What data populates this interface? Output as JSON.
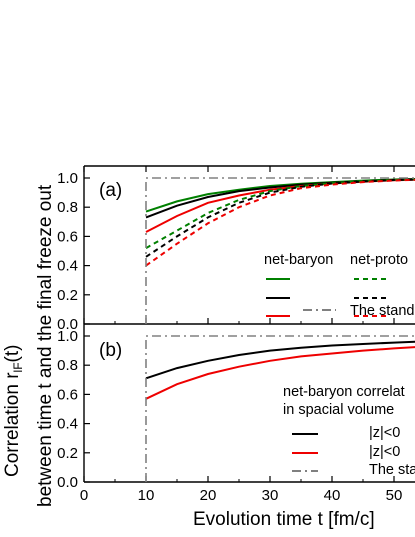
{
  "chart_data": {
    "type": "line",
    "xlabel": "Evolution time t  [fm/c]",
    "ylabel_line1": "Correlation r",
    "ylabel_sub": "lF",
    "ylabel_suffix": "(t)",
    "ylabel_line2": "between time t and the final freeze out",
    "xlim": [
      0,
      55
    ],
    "x_ticks": [
      "0",
      "10",
      "20",
      "30",
      "40",
      "50"
    ],
    "colors": {
      "black": "#000000",
      "green": "#008000",
      "red": "#ee0000",
      "gray": "#808080"
    },
    "panels": [
      {
        "label": "(a)",
        "ylim": [
          0,
          1.05
        ],
        "y_ticks": [
          "0.0",
          "0.2",
          "0.4",
          "0.6",
          "0.8",
          "1.0"
        ],
        "legend": {
          "col1_header": "net-baryon",
          "col2_header": "net-proto",
          "standard_label": "The stand"
        },
        "series": [
          {
            "color": "green",
            "dash": "solid",
            "x": [
              10,
              15,
              20,
              25,
              30,
              35,
              40,
              45,
              50,
              55
            ],
            "y": [
              0.77,
              0.84,
              0.89,
              0.92,
              0.945,
              0.96,
              0.972,
              0.982,
              0.99,
              0.995
            ]
          },
          {
            "color": "black",
            "dash": "solid",
            "x": [
              10,
              15,
              20,
              25,
              30,
              35,
              40,
              45,
              50,
              55
            ],
            "y": [
              0.73,
              0.81,
              0.87,
              0.91,
              0.935,
              0.955,
              0.968,
              0.978,
              0.987,
              0.993
            ]
          },
          {
            "color": "red",
            "dash": "solid",
            "x": [
              10,
              15,
              20,
              25,
              30,
              35,
              40,
              45,
              50,
              55
            ],
            "y": [
              0.63,
              0.74,
              0.83,
              0.88,
              0.92,
              0.945,
              0.962,
              0.975,
              0.985,
              0.99
            ]
          },
          {
            "color": "green",
            "dash": "dashed",
            "x": [
              10,
              15,
              20,
              25,
              30,
              35,
              40,
              45,
              50,
              55
            ],
            "y": [
              0.52,
              0.64,
              0.76,
              0.85,
              0.91,
              0.945,
              0.965,
              0.978,
              0.987,
              0.992
            ]
          },
          {
            "color": "black",
            "dash": "dashed",
            "x": [
              10,
              15,
              20,
              25,
              30,
              35,
              40,
              45,
              50,
              55
            ],
            "y": [
              0.46,
              0.6,
              0.73,
              0.83,
              0.9,
              0.94,
              0.962,
              0.976,
              0.986,
              0.991
            ]
          },
          {
            "color": "red",
            "dash": "dashed",
            "x": [
              10,
              15,
              20,
              25,
              30,
              35,
              40,
              45,
              50,
              55
            ],
            "y": [
              0.4,
              0.55,
              0.69,
              0.8,
              0.88,
              0.93,
              0.955,
              0.972,
              0.983,
              0.99
            ]
          },
          {
            "color": "gray",
            "dash": "dashdot",
            "x": [
              10,
              10,
              55
            ],
            "y": [
              0,
              1.0,
              1.0
            ]
          }
        ]
      },
      {
        "label": "(b)",
        "ylim": [
          0,
          1.05
        ],
        "y_ticks": [
          "0.0",
          "0.2",
          "0.4",
          "0.6",
          "0.8",
          "1.0"
        ],
        "legend": {
          "title_line1": "net-baryon correlat",
          "title_line2": "in spacial volume",
          "entries": [
            "|z|<0",
            "|z|<0",
            "The sta"
          ]
        },
        "series": [
          {
            "color": "black",
            "dash": "solid",
            "x": [
              10,
              15,
              20,
              25,
              30,
              35,
              40,
              45,
              50,
              55
            ],
            "y": [
              0.71,
              0.78,
              0.83,
              0.87,
              0.9,
              0.92,
              0.935,
              0.945,
              0.955,
              0.963
            ]
          },
          {
            "color": "red",
            "dash": "solid",
            "x": [
              10,
              15,
              20,
              25,
              30,
              35,
              40,
              45,
              50,
              55
            ],
            "y": [
              0.57,
              0.67,
              0.74,
              0.79,
              0.83,
              0.86,
              0.88,
              0.9,
              0.915,
              0.928
            ]
          },
          {
            "color": "gray",
            "dash": "dashdot",
            "x": [
              10,
              10,
              55
            ],
            "y": [
              0,
              1.0,
              1.0
            ]
          }
        ]
      }
    ]
  }
}
